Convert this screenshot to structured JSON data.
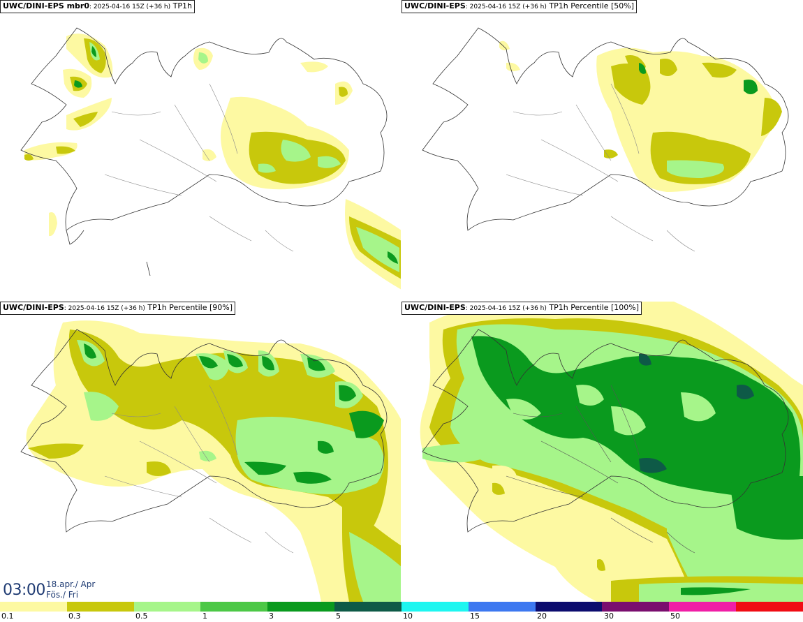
{
  "panels": [
    {
      "model": "UWC/DINI-EPS mbr0",
      "meta": "2025-04-16 15Z (+36 h)",
      "field": "TP1h"
    },
    {
      "model": "UWC/DINI-EPS",
      "meta": "2025-04-16 15Z (+36 h)",
      "field": "TP1h Percentile [50%]"
    },
    {
      "model": "UWC/DINI-EPS",
      "meta": "2025-04-16 15Z (+36 h)",
      "field": "TP1h Percentile [90%]"
    },
    {
      "model": "UWC/DINI-EPS",
      "meta": "2025-04-16 15Z (+36 h)",
      "field": "TP1h Percentile [100%]"
    }
  ],
  "valid_time": {
    "time": "03:00",
    "date_line1": "18.apr./ Apr",
    "date_line2": "Fös./ Fri"
  },
  "legend": {
    "colors": [
      "#fdf9a2",
      "#c8c80c",
      "#a6f58a",
      "#4cc846",
      "#0a9a1e",
      "#0e5a47",
      "#1ef6f0",
      "#3d78f0",
      "#0c0c6e",
      "#7a0e6e",
      "#f01ea6",
      "#f00c14"
    ],
    "labels": [
      "0.1",
      "0.3",
      "0.5",
      "1",
      "3",
      "5",
      "10",
      "15",
      "20",
      "30",
      "50"
    ]
  },
  "shade_colors": {
    "light_yellow": "#fdf9a2",
    "olive": "#c8c80c",
    "light_green": "#a6f58a",
    "green": "#0a9a1e",
    "dark_green": "#0e5a47"
  }
}
